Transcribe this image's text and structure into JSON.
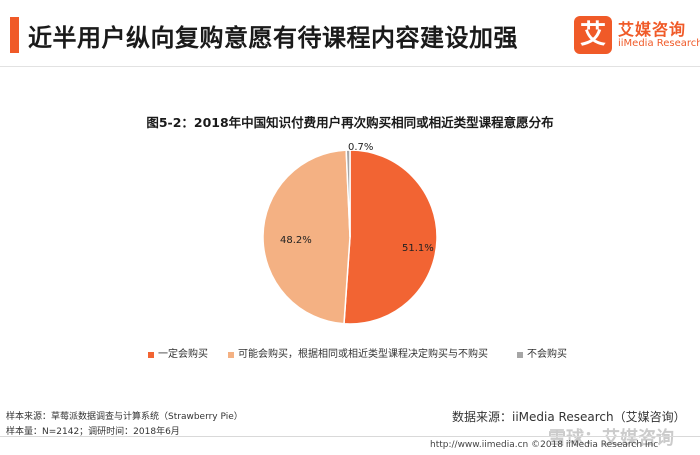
{
  "header": {
    "title": "近半用户纵向复购意愿有待课程内容建设加强",
    "accent_color": "#f05a28"
  },
  "logo": {
    "mark": "艾",
    "name_cn": "艾媒咨询",
    "name_en": "iiMedia Research"
  },
  "chart_data": {
    "type": "pie",
    "title": "图5-2：2018年中国知识付费用户再次购买相同或相近类型课程意愿分布",
    "slices": [
      {
        "name": "一定会购买",
        "value": 51.1,
        "label": "51.1%",
        "color": "#f26433"
      },
      {
        "name": "可能会购买，根据相同或相近类型课程决定购买与不购买",
        "value": 48.2,
        "label": "48.2%",
        "color": "#f4b183"
      },
      {
        "name": "不会购买",
        "value": 0.7,
        "label": "0.7%",
        "color": "#a6a6a6"
      }
    ],
    "legend_position": "bottom"
  },
  "footer": {
    "sample_source": "样本来源：草莓派数据调查与计算系统（Strawberry  Pie）",
    "sample_size": "样本量：N=2142；调研时间：2018年6月",
    "data_source": "数据来源：iiMedia Research（艾媒咨询）",
    "copyright": "http://www.iimedia.cn  ©2018  iiMedia Research  Inc",
    "watermark": "雪球：艾媒咨询"
  }
}
